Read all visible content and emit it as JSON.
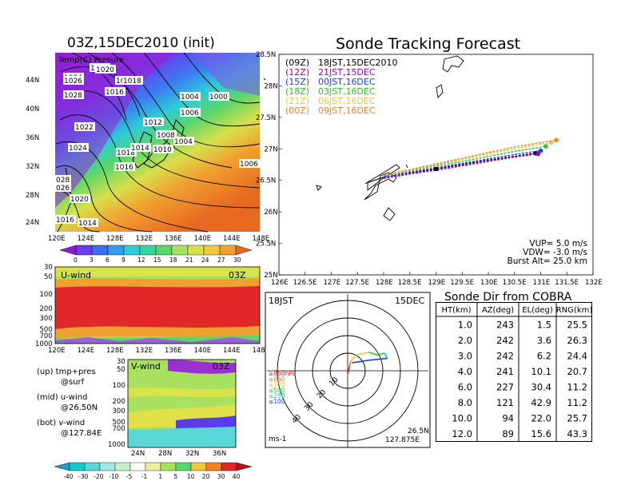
{
  "left": {
    "title": "03Z,15DEC2010 (init)",
    "map": {
      "label": "Temp(C) Presure",
      "lat_ticks": [
        "44N",
        "40N",
        "36N",
        "32N",
        "28N",
        "24N"
      ],
      "lon_ticks": [
        "120E",
        "124E",
        "128E",
        "132E",
        "136E",
        "140E",
        "144E",
        "148E"
      ],
      "isobar_labels": [
        "1022",
        "1020",
        "1024",
        "1018",
        "1018",
        "1026",
        "1016",
        "1028",
        "1004",
        "1000",
        "1006",
        "1012",
        "1022",
        "1008",
        "1004",
        "1024",
        "1018",
        "1014",
        "1010",
        "1016",
        "1006",
        "028",
        "026",
        "1020",
        "1016",
        "1014"
      ],
      "colorbar": [
        "0",
        "3",
        "6",
        "9",
        "12",
        "15",
        "18",
        "21",
        "24",
        "27",
        "30"
      ]
    },
    "uwind": {
      "label": "U-wind",
      "time": "03Z",
      "p_ticks": [
        "30",
        "50",
        "100",
        "200",
        "300",
        "500",
        "700",
        "1000"
      ],
      "lon_ticks": [
        "120E",
        "124E",
        "128E",
        "132E",
        "136E",
        "140E",
        "144E",
        "148E"
      ]
    },
    "vwind": {
      "label": "V-wind",
      "time": "03Z",
      "p_ticks": [
        "30",
        "50",
        "100",
        "200",
        "300",
        "500",
        "700",
        "1000"
      ],
      "lat_ticks": [
        "24N",
        "28N",
        "32N",
        "36N"
      ],
      "colorbar": [
        "-40",
        "-30",
        "-20",
        "-10",
        "-5",
        "-1",
        "1",
        "5",
        "10",
        "20",
        "30",
        "40"
      ]
    },
    "legend": {
      "up1": "(up) tmp+pres",
      "up2": "@surf",
      "mid1": "(mid) u-wind",
      "mid2": "@26.50N",
      "bot1": "(bot) v-wind",
      "bot2": "@127.84E"
    }
  },
  "track": {
    "title": "Sonde Tracking Forecast",
    "lat_ticks": [
      "28.5N",
      "28N",
      "27.5N",
      "27N",
      "26.5N",
      "26N",
      "25.5N",
      "25N"
    ],
    "lon_ticks": [
      "126E",
      "126.5E",
      "127E",
      "127.5E",
      "128E",
      "128.5E",
      "129E",
      "129.5E",
      "130E",
      "130.5E",
      "131E",
      "131.5E",
      "132E"
    ],
    "legend": [
      {
        "utc": "(09Z)",
        "jst": "18JST,15DEC2010",
        "color": "#000000"
      },
      {
        "utc": "(12Z)",
        "jst": "21JST,15DEC",
        "color": "#a000c8"
      },
      {
        "utc": "(15Z)",
        "jst": "00JST,16DEC",
        "color": "#1e3cff"
      },
      {
        "utc": "(18Z)",
        "jst": "03JST,16DEC",
        "color": "#28c828"
      },
      {
        "utc": "(21Z)",
        "jst": "06JST,16DEC",
        "color": "#e6c83c"
      },
      {
        "utc": "(00Z)",
        "jst": "09JST,16DEC",
        "color": "#f08228"
      }
    ],
    "params": [
      "VUP= 5.0 m/s",
      "VDW= -3.0 m/s",
      "Burst Alt= 25.0 km"
    ],
    "chart_data": {
      "type": "line",
      "xlim": [
        126,
        132
      ],
      "ylim": [
        25,
        28.5
      ],
      "series": [
        {
          "name": "(09Z) 18JST,15DEC2010",
          "color": "#000000",
          "x": [
            128.0,
            128.5,
            129.0,
            129.5,
            130.0,
            130.5,
            130.9
          ],
          "y": [
            26.55,
            26.62,
            26.68,
            26.75,
            26.82,
            26.88,
            26.93
          ]
        },
        {
          "name": "(12Z) 21JST,15DEC",
          "color": "#a000c8",
          "x": [
            128.0,
            128.5,
            129.0,
            129.5,
            130.0,
            130.5,
            130.95
          ],
          "y": [
            26.53,
            26.6,
            26.66,
            26.73,
            26.8,
            26.87,
            26.92
          ]
        },
        {
          "name": "(15Z) 00JST,16DEC",
          "color": "#1e3cff",
          "x": [
            128.0,
            128.5,
            129.0,
            129.5,
            130.0,
            130.5,
            131.0
          ],
          "y": [
            26.55,
            26.63,
            26.7,
            26.77,
            26.84,
            26.91,
            26.97
          ]
        },
        {
          "name": "(18Z) 03JST,16DEC",
          "color": "#28c828",
          "x": [
            128.0,
            128.5,
            129.0,
            129.5,
            130.0,
            130.5,
            131.1
          ],
          "y": [
            26.57,
            26.65,
            26.73,
            26.8,
            26.88,
            26.96,
            27.04
          ]
        },
        {
          "name": "(21Z) 06JST,16DEC",
          "color": "#e6c83c",
          "x": [
            128.0,
            128.5,
            129.0,
            129.5,
            130.0,
            130.5,
            131.2
          ],
          "y": [
            26.58,
            26.66,
            26.75,
            26.83,
            26.92,
            27.0,
            27.1
          ]
        },
        {
          "name": "(00Z) 09JST,16DEC",
          "color": "#f08228",
          "x": [
            128.0,
            128.5,
            129.0,
            129.5,
            130.0,
            130.5,
            131.3
          ],
          "y": [
            26.58,
            26.67,
            26.76,
            26.85,
            26.94,
            27.03,
            27.14
          ]
        }
      ],
      "launch": {
        "x": 129.0,
        "y": 26.68
      },
      "grid": false
    }
  },
  "polar": {
    "time": "18JST",
    "date": "15DEC",
    "ring_labels": [
      "10",
      "20",
      "30",
      "40"
    ],
    "units": "ms-1",
    "loc_lat": "26.5N",
    "loc_lon": "127.875E",
    "pressure_legend": [
      {
        "label": "≥850hPa",
        "color": "#e61e1e"
      },
      {
        "label": "≤850",
        "color": "#f08228"
      },
      {
        "label": "≤700",
        "color": "#e6c83c"
      },
      {
        "label": "≤500",
        "color": "#28c828"
      },
      {
        "label": "≤250",
        "color": "#14c8c8"
      },
      {
        "label": "≤100",
        "color": "#1e3cff"
      }
    ],
    "chart_data": {
      "type": "line",
      "units": "m/s",
      "hodograph": [
        {
          "u": 0.0,
          "v": -2.0,
          "color": "#e61e1e"
        },
        {
          "u": 1.2,
          "v": 3.0,
          "color": "#e61e1e"
        },
        {
          "u": 1.5,
          "v": 5.0,
          "color": "#f08228"
        },
        {
          "u": 5.0,
          "v": 9.0,
          "color": "#e6c83c"
        },
        {
          "u": 12.0,
          "v": 10.5,
          "color": "#e6c83c"
        },
        {
          "u": 17.0,
          "v": 9.0,
          "color": "#28c828"
        },
        {
          "u": 21.0,
          "v": 10.0,
          "color": "#28c828"
        },
        {
          "u": 22.5,
          "v": 7.0,
          "color": "#14c8c8"
        },
        {
          "u": 12.0,
          "v": 6.0,
          "color": "#1e3cff"
        },
        {
          "u": 2.5,
          "v": 4.5,
          "color": "#1e3cff"
        }
      ]
    }
  },
  "table": {
    "title": "Sonde Dir from COBRA",
    "headers": [
      "HT(km)",
      "AZ(deg)",
      "EL(deg)",
      "RNG(km)"
    ],
    "rows": [
      [
        "1.0",
        "243",
        "1.5",
        "25.5"
      ],
      [
        "2.0",
        "242",
        "3.6",
        "26.3"
      ],
      [
        "3.0",
        "242",
        "6.2",
        "24.4"
      ],
      [
        "4.0",
        "241",
        "10.1",
        "20.7"
      ],
      [
        "6.0",
        "227",
        "30.4",
        "11.2"
      ],
      [
        "8.0",
        "121",
        "42.9",
        "11.2"
      ],
      [
        "10.0",
        "94",
        "22.0",
        "25.7"
      ],
      [
        "12.0",
        "89",
        "15.6",
        "43.3"
      ]
    ]
  }
}
